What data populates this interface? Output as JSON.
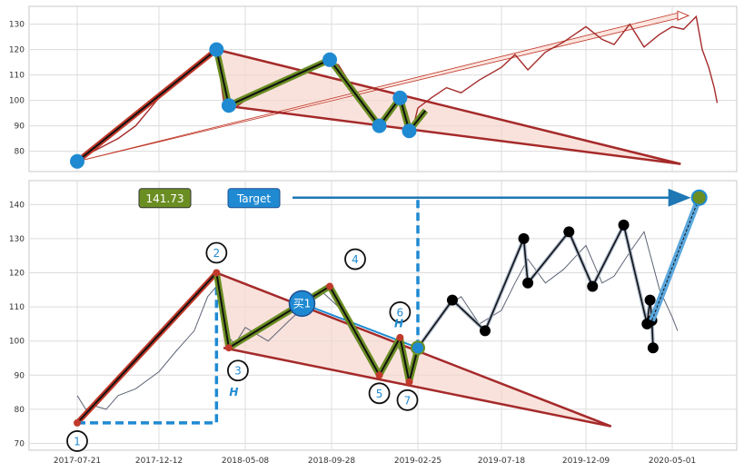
{
  "chart_data": [
    {
      "type": "line",
      "x_dates": [
        "2017-07-21",
        "2017-12-12",
        "2018-05-08",
        "2018-09-28",
        "2019-02-25",
        "2019-07-18",
        "2019-12-09",
        "2020-05-01"
      ],
      "ylim": [
        72,
        137
      ],
      "yticks": [
        80,
        90,
        100,
        110,
        120,
        130
      ],
      "grid": true,
      "series": [
        {
          "color": "#a52a2a",
          "points": [
            [
              "2017-07-21",
              76
            ],
            [
              "2017-08-10",
              79
            ],
            [
              "2017-09-05",
              82
            ],
            [
              "2017-10-01",
              85
            ],
            [
              "2017-11-01",
              90
            ],
            [
              "2017-12-12",
              101
            ],
            [
              "2018-01-10",
              108
            ],
            [
              "2018-02-10",
              113
            ],
            [
              "2018-03-05",
              118
            ],
            [
              "2018-03-20",
              120
            ],
            [
              "2018-04-01",
              100
            ],
            [
              "2018-04-20",
              97
            ],
            [
              "2018-05-08",
              100
            ],
            [
              "2018-06-15",
              105
            ],
            [
              "2018-07-20",
              109
            ],
            [
              "2018-08-20",
              113
            ],
            [
              "2018-09-15",
              116
            ],
            [
              "2018-10-10",
              114
            ],
            [
              "2018-11-01",
              106
            ],
            [
              "2018-11-25",
              99
            ],
            [
              "2018-12-15",
              91
            ],
            [
              "2019-01-05",
              94
            ],
            [
              "2019-01-20",
              101
            ],
            [
              "2019-02-05",
              96
            ],
            [
              "2019-02-15",
              88
            ],
            [
              "2019-02-25",
              97
            ],
            [
              "2019-03-20",
              101
            ],
            [
              "2019-04-15",
              105
            ],
            [
              "2019-05-10",
              103
            ],
            [
              "2019-06-10",
              108
            ],
            [
              "2019-07-18",
              113
            ],
            [
              "2019-08-10",
              118
            ],
            [
              "2019-09-01",
              112
            ],
            [
              "2019-10-01",
              119
            ],
            [
              "2019-11-01",
              123
            ],
            [
              "2019-12-09",
              129
            ],
            [
              "2020-01-05",
              124
            ],
            [
              "2020-01-25",
              122
            ],
            [
              "2020-02-20",
              130
            ],
            [
              "2020-03-15",
              121
            ],
            [
              "2020-04-10",
              126
            ],
            [
              "2020-05-01",
              129
            ],
            [
              "2020-05-20",
              128
            ],
            [
              "2020-06-10",
              133
            ],
            [
              "2020-06-20",
              120
            ],
            [
              "2020-07-01",
              113
            ],
            [
              "2020-07-10",
              105
            ],
            [
              "2020-07-15",
              99
            ]
          ]
        }
      ],
      "markers": [
        [
          "2017-07-21",
          76
        ],
        [
          "2018-03-20",
          120
        ],
        [
          "2018-04-10",
          98
        ],
        [
          "2018-09-25",
          116
        ],
        [
          "2018-12-20",
          90
        ],
        [
          "2019-01-25",
          101
        ],
        [
          "2019-02-10",
          88
        ]
      ],
      "trend_lines": [
        {
          "from": [
            "2017-07-21",
            76
          ],
          "to": [
            "2018-03-20",
            120
          ],
          "color": "#c0392b"
        },
        {
          "from": [
            "2018-03-20",
            120
          ],
          "to": [
            "2020-05-15",
            75
          ],
          "color": "#a52a2a"
        },
        {
          "from": [
            "2018-04-01",
            98
          ],
          "to": [
            "2020-05-15",
            75
          ],
          "color": "#a52a2a"
        },
        {
          "from": [
            "2017-07-21",
            76
          ],
          "to": [
            "2020-05-10",
            133
          ],
          "color": "#c0392b",
          "arrow": true
        }
      ]
    },
    {
      "type": "line",
      "x_dates": [
        "2017-07-21",
        "2017-12-12",
        "2018-05-08",
        "2018-09-28",
        "2019-02-25",
        "2019-07-18",
        "2019-12-09",
        "2020-05-01"
      ],
      "ylim": [
        68,
        147
      ],
      "yticks": [
        70,
        80,
        90,
        100,
        110,
        120,
        130,
        140
      ],
      "grid": true,
      "annotations": {
        "price_box": "141.73",
        "target_box": "Target",
        "h_labels": [
          "H",
          "H"
        ],
        "buy_label": "买1",
        "pivot_labels": [
          "1",
          "2",
          "3",
          "4",
          "5",
          "6",
          "7"
        ]
      },
      "series": [
        {
          "color": "#5d6475",
          "points": [
            [
              "2017-07-21",
              84
            ],
            [
              "2017-08-05",
              80
            ],
            [
              "2017-08-20",
              81
            ],
            [
              "2017-09-10",
              80
            ],
            [
              "2017-10-01",
              84
            ],
            [
              "2017-11-01",
              86
            ],
            [
              "2017-12-12",
              91
            ],
            [
              "2018-01-10",
              97
            ],
            [
              "2018-02-10",
              103
            ],
            [
              "2018-03-05",
              113
            ],
            [
              "2018-03-20",
              116
            ],
            [
              "2018-04-01",
              103
            ],
            [
              "2018-04-20",
              99
            ],
            [
              "2018-05-08",
              104
            ],
            [
              "2018-06-15",
              100
            ],
            [
              "2018-07-20",
              106
            ],
            [
              "2018-08-20",
              111
            ],
            [
              "2018-09-15",
              114
            ],
            [
              "2018-10-10",
              110
            ],
            [
              "2018-11-01",
              103
            ],
            [
              "2018-11-25",
              96
            ],
            [
              "2018-12-15",
              91
            ],
            [
              "2019-01-05",
              94
            ],
            [
              "2019-01-20",
              99
            ],
            [
              "2019-02-05",
              93
            ],
            [
              "2019-02-15",
              89
            ],
            [
              "2019-02-25",
              98
            ],
            [
              "2019-03-20",
              104
            ],
            [
              "2019-04-15",
              110
            ],
            [
              "2019-05-10",
              113
            ],
            [
              "2019-06-10",
              105
            ],
            [
              "2019-07-18",
              109
            ],
            [
              "2019-08-10",
              117
            ],
            [
              "2019-09-01",
              124
            ],
            [
              "2019-10-01",
              117
            ],
            [
              "2019-11-01",
              121
            ],
            [
              "2019-12-09",
              128
            ],
            [
              "2020-01-05",
              117
            ],
            [
              "2020-01-25",
              119
            ],
            [
              "2020-02-20",
              126
            ],
            [
              "2020-03-15",
              132
            ],
            [
              "2020-04-10",
              115
            ],
            [
              "2020-05-01",
              107
            ],
            [
              "2020-05-10",
              103
            ]
          ]
        }
      ],
      "pivots": [
        [
          "2017-07-21",
          76
        ],
        [
          "2018-03-20",
          120
        ],
        [
          "2018-04-10",
          98
        ],
        [
          "2018-09-25",
          116
        ],
        [
          "2018-12-20",
          90
        ],
        [
          "2019-01-25",
          101
        ],
        [
          "2019-02-10",
          88
        ]
      ],
      "zigzag": [
        [
          "2019-02-25",
          98
        ],
        [
          "2019-04-25",
          112
        ],
        [
          "2019-06-20",
          103
        ],
        [
          "2019-08-25",
          130
        ],
        [
          "2019-09-01",
          117
        ],
        [
          "2019-11-10",
          132
        ],
        [
          "2019-12-20",
          116
        ],
        [
          "2020-02-10",
          134
        ],
        [
          "2020-03-20",
          105
        ],
        [
          "2020-03-25",
          112
        ],
        [
          "2020-03-28",
          106
        ],
        [
          "2020-03-30",
          98
        ]
      ],
      "target_line": {
        "from": [
          "2020-03-28",
          106
        ],
        "to": [
          "2020-06-15",
          142
        ]
      },
      "trend_lines": [
        {
          "from": [
            "2017-07-21",
            76
          ],
          "to": [
            "2018-03-20",
            120
          ],
          "color": "#c0392b"
        },
        {
          "from": [
            "2018-03-20",
            120
          ],
          "to": [
            "2020-01-20",
            75
          ],
          "color": "#a52a2a"
        },
        {
          "from": [
            "2018-04-01",
            98
          ],
          "to": [
            "2020-01-20",
            75
          ],
          "color": "#a52a2a"
        }
      ]
    }
  ]
}
